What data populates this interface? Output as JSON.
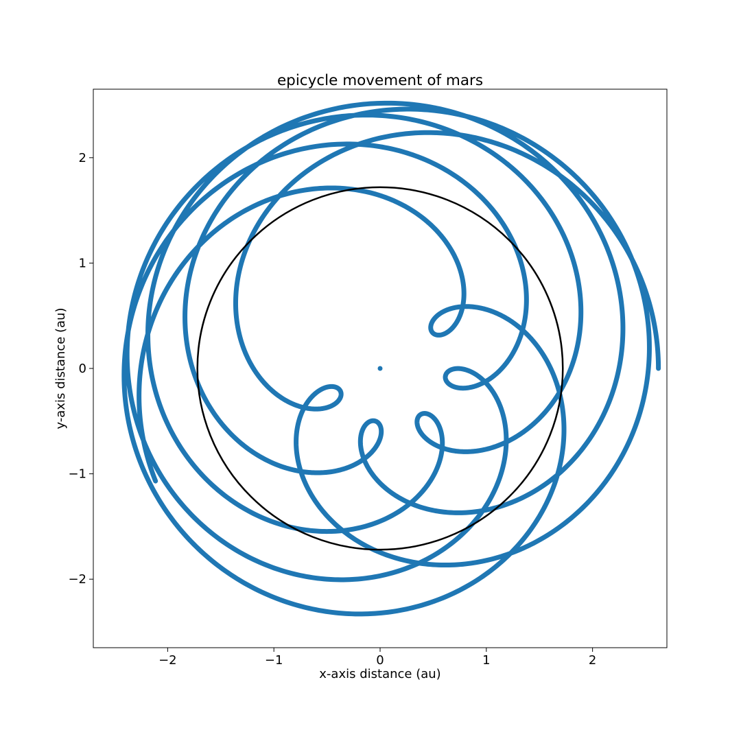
{
  "chart_data": {
    "type": "scatter",
    "title": "epicycle movement of mars",
    "xlabel": "x-axis distance (au)",
    "ylabel": "y-axis distance (au)",
    "xlim": [
      -2.7,
      2.7
    ],
    "ylim": [
      -2.65,
      2.65
    ],
    "xticks": [
      -2,
      -1,
      0,
      1,
      2
    ],
    "yticks": [
      -2,
      -1,
      0,
      1,
      2
    ],
    "xtick_labels": [
      "−2",
      "−1",
      "0",
      "1",
      "2"
    ],
    "ytick_labels": [
      "−2",
      "−1",
      "0",
      "1",
      "2"
    ],
    "grid": false,
    "legend": "none",
    "colors": {
      "trajectory": "#1f77b4",
      "deferent": "#000000"
    },
    "series": [
      {
        "kind": "epicycle-trajectory",
        "deferent_radius": 1.52,
        "epicycle_radius": 1.0,
        "deferent_angular_rate": 1.0,
        "epicycle_angular_rate": 1.88,
        "x_offset": 0.1,
        "samples": 3600,
        "span_turns": 5.6
      },
      {
        "kind": "center-point",
        "x": 0,
        "y": 0
      },
      {
        "kind": "deferent-circle",
        "cx": 0,
        "cy": 0,
        "r": 1.72
      }
    ]
  }
}
